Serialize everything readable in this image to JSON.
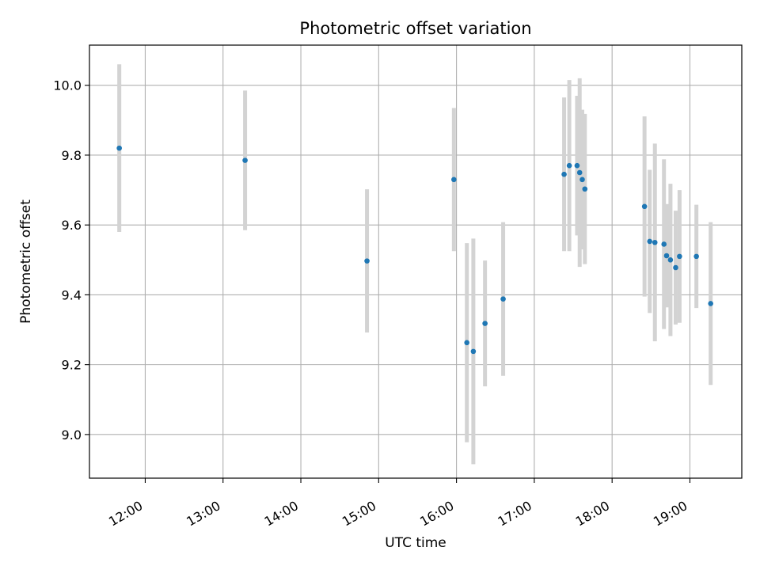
{
  "chart_data": {
    "type": "scatter",
    "title": "Photometric offset variation",
    "xlabel": "UTC time",
    "ylabel": "Photometric offset",
    "grid": true,
    "x_axis_kind": "time",
    "xlim": [
      "11:17",
      "19:40"
    ],
    "ylim": [
      8.875,
      10.115
    ],
    "x_ticks": [
      "12:00",
      "13:00",
      "14:00",
      "15:00",
      "16:00",
      "17:00",
      "18:00",
      "19:00"
    ],
    "y_ticks": [
      9.0,
      9.2,
      9.4,
      9.6,
      9.8,
      10.0
    ],
    "y_tick_labels": [
      "9.0",
      "9.2",
      "9.4",
      "9.6",
      "9.8",
      "10.0"
    ],
    "colors": {
      "points": "#1f77b4",
      "errorbars": "#d3d3d3",
      "grid": "#b0b0b0"
    },
    "points": [
      {
        "x": "11:40",
        "y": 9.82,
        "yerr": 0.24
      },
      {
        "x": "13:17",
        "y": 9.785,
        "yerr": 0.2
      },
      {
        "x": "14:51",
        "y": 9.497,
        "yerr": 0.205
      },
      {
        "x": "15:58",
        "y": 9.73,
        "yerr": 0.205
      },
      {
        "x": "16:08",
        "y": 9.263,
        "yerr": 0.285
      },
      {
        "x": "16:13",
        "y": 9.238,
        "yerr": 0.323
      },
      {
        "x": "16:22",
        "y": 9.318,
        "yerr": 0.18
      },
      {
        "x": "16:36",
        "y": 9.388,
        "yerr": 0.22
      },
      {
        "x": "17:23",
        "y": 9.745,
        "yerr": 0.22
      },
      {
        "x": "17:27",
        "y": 9.77,
        "yerr": 0.245
      },
      {
        "x": "17:33",
        "y": 9.77,
        "yerr": 0.2
      },
      {
        "x": "17:35",
        "y": 9.75,
        "yerr": 0.27
      },
      {
        "x": "17:37",
        "y": 9.73,
        "yerr": 0.2
      },
      {
        "x": "17:39",
        "y": 9.703,
        "yerr": 0.215
      },
      {
        "x": "18:25",
        "y": 9.653,
        "yerr": 0.258
      },
      {
        "x": "18:29",
        "y": 9.553,
        "yerr": 0.205
      },
      {
        "x": "18:33",
        "y": 9.55,
        "yerr": 0.283
      },
      {
        "x": "18:40",
        "y": 9.545,
        "yerr": 0.243
      },
      {
        "x": "18:42",
        "y": 9.512,
        "yerr": 0.148
      },
      {
        "x": "18:45",
        "y": 9.5,
        "yerr": 0.218
      },
      {
        "x": "18:49",
        "y": 9.478,
        "yerr": 0.163
      },
      {
        "x": "18:52",
        "y": 9.51,
        "yerr": 0.19
      },
      {
        "x": "19:05",
        "y": 9.51,
        "yerr": 0.148
      },
      {
        "x": "19:16",
        "y": 9.375,
        "yerr": 0.233
      }
    ]
  }
}
